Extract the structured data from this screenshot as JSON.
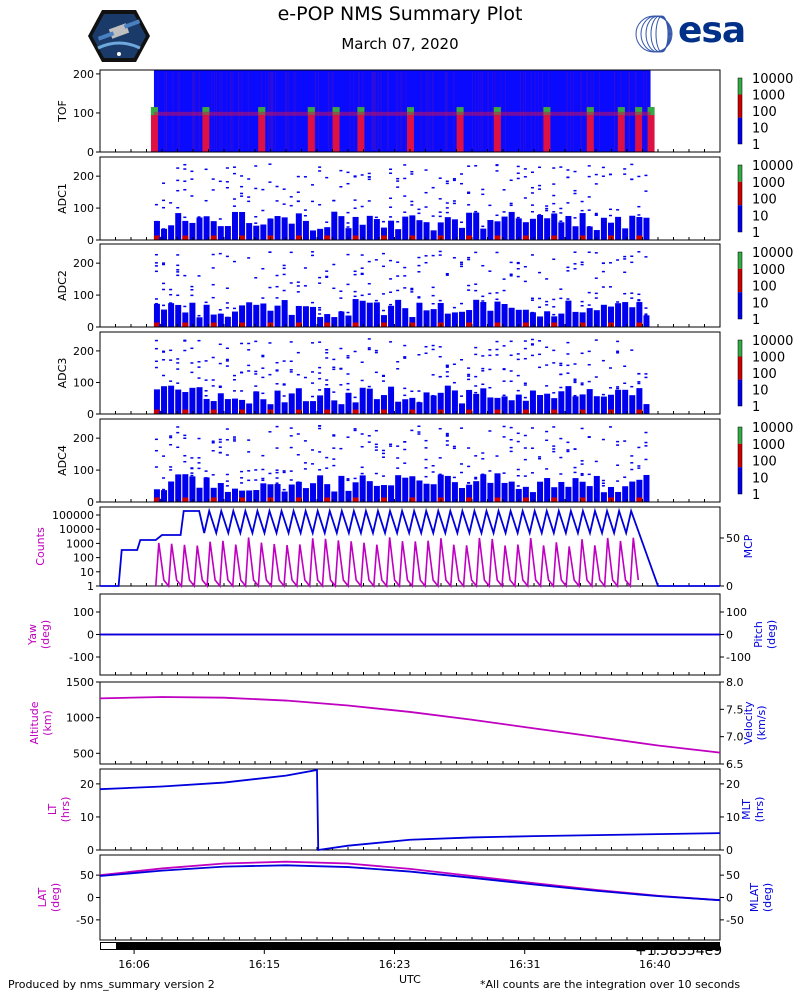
{
  "title": "e-POP NMS Summary Plot",
  "date": "March 07, 2020",
  "logos": {
    "left_name": "epop-cassiope-mission-patch",
    "right_text": "esa"
  },
  "footer": {
    "left": "Produced by nms_summary version 2",
    "right": "*All counts are the integration over 10 seconds"
  },
  "x_axis": {
    "label": "UTC",
    "offset_text": "+1.58354e9",
    "ticks": [
      "16:06",
      "16:15",
      "16:23",
      "16:31",
      "16:40"
    ]
  },
  "colorbar": {
    "ticks": [
      "10000",
      "1000",
      "100",
      "10",
      "1"
    ],
    "colors": [
      "#0000ff",
      "#cc0000",
      "#44aa44"
    ]
  },
  "chart_data": [
    {
      "type": "heatmap",
      "panel": "TOF",
      "ylabel": "TOF",
      "yticks": [
        "200",
        "100",
        "0"
      ],
      "ylim": [
        0,
        210
      ],
      "colorbar": "log counts 1-10000",
      "data_extent": [
        "16:01",
        "16:40"
      ],
      "bright_bands_y": [
        93,
        100,
        113
      ]
    },
    {
      "type": "heatmap",
      "panel": "ADC1",
      "ylabel": "ADC1",
      "yticks": [
        "200",
        "100",
        "0"
      ],
      "ylim": [
        0,
        260
      ],
      "colorbar": "log counts 1-10000"
    },
    {
      "type": "heatmap",
      "panel": "ADC2",
      "ylabel": "ADC2",
      "yticks": [
        "200",
        "100",
        "0"
      ],
      "ylim": [
        0,
        260
      ],
      "colorbar": "log counts 1-10000"
    },
    {
      "type": "heatmap",
      "panel": "ADC3",
      "ylabel": "ADC3",
      "yticks": [
        "200",
        "100",
        "0"
      ],
      "ylim": [
        0,
        260
      ],
      "colorbar": "log counts 1-10000"
    },
    {
      "type": "heatmap",
      "panel": "ADC4",
      "ylabel": "ADC4",
      "yticks": [
        "200",
        "100",
        "0"
      ],
      "ylim": [
        0,
        260
      ],
      "colorbar": "log counts 1-10000"
    },
    {
      "type": "line",
      "panel": "Counts/MCP",
      "ylabel_left": "Counts",
      "ylabel_right": "MCP",
      "yticks_left": [
        "100000",
        "10000",
        "1000",
        "100",
        "10",
        "1"
      ],
      "yticks_right": [
        "50",
        "0"
      ],
      "series": [
        {
          "name": "Counts",
          "color": "#c000c0",
          "scale": "log",
          "note": "oscillating 1-10000 between 16:05 and 16:40"
        },
        {
          "name": "MCP",
          "color": "#0000dd",
          "x": [
            0,
            0.03,
            0.06,
            0.09,
            0.12,
            0.16,
            0.2,
            0.23,
            0.26,
            0.85,
            0.88,
            1.0
          ],
          "y": [
            0,
            0,
            30,
            30,
            38,
            48,
            58,
            80,
            80,
            80,
            0,
            0
          ]
        }
      ]
    },
    {
      "type": "line",
      "panel": "Attitude",
      "ylabel_left": "Yaw\n(deg)",
      "ylabel_right": "Pitch\n(deg)",
      "yticks_left": [
        "100",
        "0",
        "-100"
      ],
      "yticks_right": [
        "100",
        "0",
        "-100"
      ],
      "ylim": [
        -180,
        180
      ],
      "series": [
        {
          "name": "Yaw",
          "color": "#c000c0",
          "values": "approx 0"
        },
        {
          "name": "Pitch",
          "color": "#0000dd",
          "values": "approx 0"
        }
      ]
    },
    {
      "type": "line",
      "panel": "Orbit",
      "ylabel_left": "Altitude\n(km)",
      "ylabel_right": "Velocity\n(km/s)",
      "yticks_left": [
        "1500",
        "1000",
        "500"
      ],
      "yticks_right": [
        "8.0",
        "7.5",
        "7.0",
        "6.5"
      ],
      "ylim": [
        350,
        1500
      ],
      "series": [
        {
          "name": "Altitude",
          "color": "#c000c0",
          "x": [
            0,
            0.1,
            0.2,
            0.3,
            0.4,
            0.5,
            0.6,
            0.7,
            0.8,
            0.9,
            1.0
          ],
          "y": [
            1270,
            1290,
            1280,
            1240,
            1170,
            1080,
            970,
            850,
            730,
            610,
            510
          ]
        }
      ]
    },
    {
      "type": "line",
      "panel": "LocalTime",
      "ylabel_left": "LT\n(hrs)",
      "ylabel_right": "MLT\n(hrs)",
      "yticks_left": [
        "20",
        "10",
        "0"
      ],
      "yticks_right": [
        "20",
        "10",
        "0"
      ],
      "ylim": [
        0,
        24.5
      ],
      "series": [
        {
          "name": "MLT",
          "color": "#0000dd",
          "x": [
            0,
            0.1,
            0.2,
            0.3,
            0.35,
            0.352,
            0.4,
            0.5,
            0.6,
            0.7,
            0.8,
            0.9,
            1.0
          ],
          "y": [
            18.4,
            19.2,
            20.4,
            22.5,
            24.2,
            0,
            1.3,
            3.1,
            3.8,
            4.2,
            4.5,
            4.8,
            5.1
          ]
        }
      ]
    },
    {
      "type": "line",
      "panel": "Latitude",
      "ylabel_left": "LAT\n(deg)",
      "ylabel_right": "MLAT\n(deg)",
      "yticks_left": [
        "50",
        "0",
        "-50"
      ],
      "yticks_right": [
        "50",
        "0",
        "-50"
      ],
      "ylim": [
        -95,
        95
      ],
      "series": [
        {
          "name": "LAT",
          "color": "#c000c0",
          "x": [
            0,
            0.1,
            0.2,
            0.3,
            0.4,
            0.5,
            0.6,
            0.7,
            0.8,
            0.9,
            1.0
          ],
          "y": [
            50,
            65,
            76,
            80,
            76,
            64,
            48,
            32,
            17,
            4,
            -6
          ]
        },
        {
          "name": "MLAT",
          "color": "#0000dd",
          "x": [
            0,
            0.1,
            0.2,
            0.3,
            0.4,
            0.5,
            0.6,
            0.7,
            0.8,
            0.9,
            1.0
          ],
          "y": [
            48,
            60,
            69,
            72,
            68,
            58,
            44,
            29,
            15,
            3,
            -6
          ]
        }
      ]
    }
  ]
}
